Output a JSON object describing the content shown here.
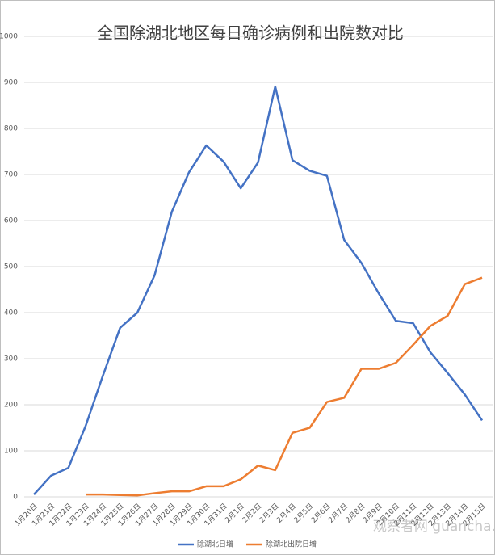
{
  "chart_data": {
    "type": "line",
    "title": "全国除湖北地区每日确诊病例和出院数对比",
    "categories": [
      "1月20日",
      "1月21日",
      "1月22日",
      "1月23日",
      "1月24日",
      "1月25日",
      "1月26日",
      "1月27日",
      "1月28日",
      "1月29日",
      "1月30日",
      "1月31日",
      "2月1日",
      "2月2日",
      "2月3日",
      "2月4日",
      "2月5日",
      "2月6日",
      "2月7日",
      "2月8日",
      "2月9日",
      "2月10日",
      "2月11日",
      "2月12日",
      "2月13日",
      "2月14日",
      "2月15日"
    ],
    "series": [
      {
        "name": "除湖北日增",
        "color": "#4472c4",
        "values": [
          5,
          46,
          63,
          154,
          263,
          367,
          400,
          481,
          619,
          705,
          763,
          728,
          670,
          726,
          891,
          731,
          708,
          697,
          558,
          508,
          442,
          382,
          377,
          314,
          269,
          222,
          166
        ]
      },
      {
        "name": "除湖北出院日增",
        "color": "#ed7d31",
        "values": [
          null,
          null,
          null,
          5,
          5,
          4,
          3,
          8,
          12,
          12,
          23,
          23,
          38,
          68,
          58,
          139,
          150,
          206,
          215,
          278,
          278,
          291,
          330,
          371,
          393,
          462,
          476
        ]
      }
    ],
    "ylim": [
      0,
      1000
    ],
    "yticks": [
      0,
      100,
      200,
      300,
      400,
      500,
      600,
      700,
      800,
      900,
      1000
    ],
    "grid": true,
    "legend": "bottom",
    "watermark": "观察者网 guancha.cn"
  }
}
